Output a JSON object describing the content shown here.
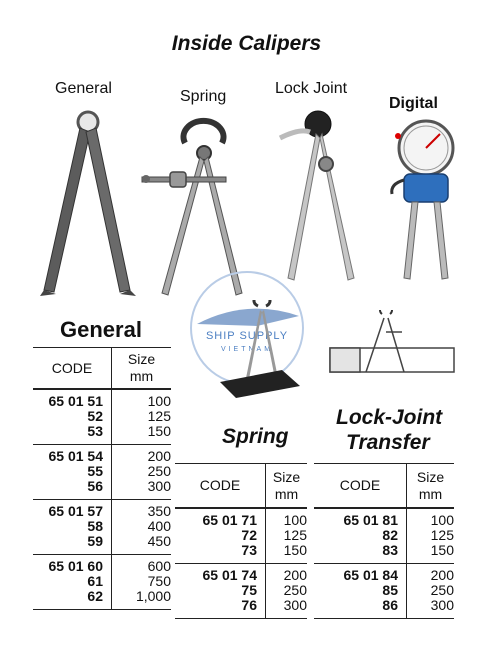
{
  "title": "Inside Calipers",
  "types": {
    "general": "General",
    "spring": "Spring",
    "lock_joint": "Lock Joint",
    "digital": "Digital"
  },
  "watermark": {
    "line1": "SHIP SUPPLY",
    "line2": "VIETNAM"
  },
  "general_table": {
    "title": "General",
    "header": {
      "code": "CODE",
      "size": "Size",
      "unit": "mm"
    },
    "groups": [
      [
        {
          "code": "65 01 51",
          "size": "100"
        },
        {
          "code": "52",
          "size": "125"
        },
        {
          "code": "53",
          "size": "150"
        }
      ],
      [
        {
          "code": "65 01 54",
          "size": "200"
        },
        {
          "code": "55",
          "size": "250"
        },
        {
          "code": "56",
          "size": "300"
        }
      ],
      [
        {
          "code": "65 01 57",
          "size": "350"
        },
        {
          "code": "58",
          "size": "400"
        },
        {
          "code": "59",
          "size": "450"
        }
      ],
      [
        {
          "code": "65 01 60",
          "size": "600"
        },
        {
          "code": "61",
          "size": "750"
        },
        {
          "code": "62",
          "size": "1,000"
        }
      ]
    ]
  },
  "spring_table": {
    "title": "Spring",
    "header": {
      "code": "CODE",
      "size": "Size",
      "unit": "mm"
    },
    "groups": [
      [
        {
          "code": "65 01 71",
          "size": "100"
        },
        {
          "code": "72",
          "size": "125"
        },
        {
          "code": "73",
          "size": "150"
        }
      ],
      [
        {
          "code": "65 01 74",
          "size": "200"
        },
        {
          "code": "75",
          "size": "250"
        },
        {
          "code": "76",
          "size": "300"
        }
      ]
    ]
  },
  "lock_table": {
    "title_line1": "Lock-Joint",
    "title_line2": "Transfer",
    "header": {
      "code": "CODE",
      "size": "Size",
      "unit": "mm"
    },
    "groups": [
      [
        {
          "code": "65 01 81",
          "size": "100"
        },
        {
          "code": "82",
          "size": "125"
        },
        {
          "code": "83",
          "size": "150"
        }
      ],
      [
        {
          "code": "65 01 84",
          "size": "200"
        },
        {
          "code": "85",
          "size": "250"
        },
        {
          "code": "86",
          "size": "300"
        }
      ]
    ]
  }
}
